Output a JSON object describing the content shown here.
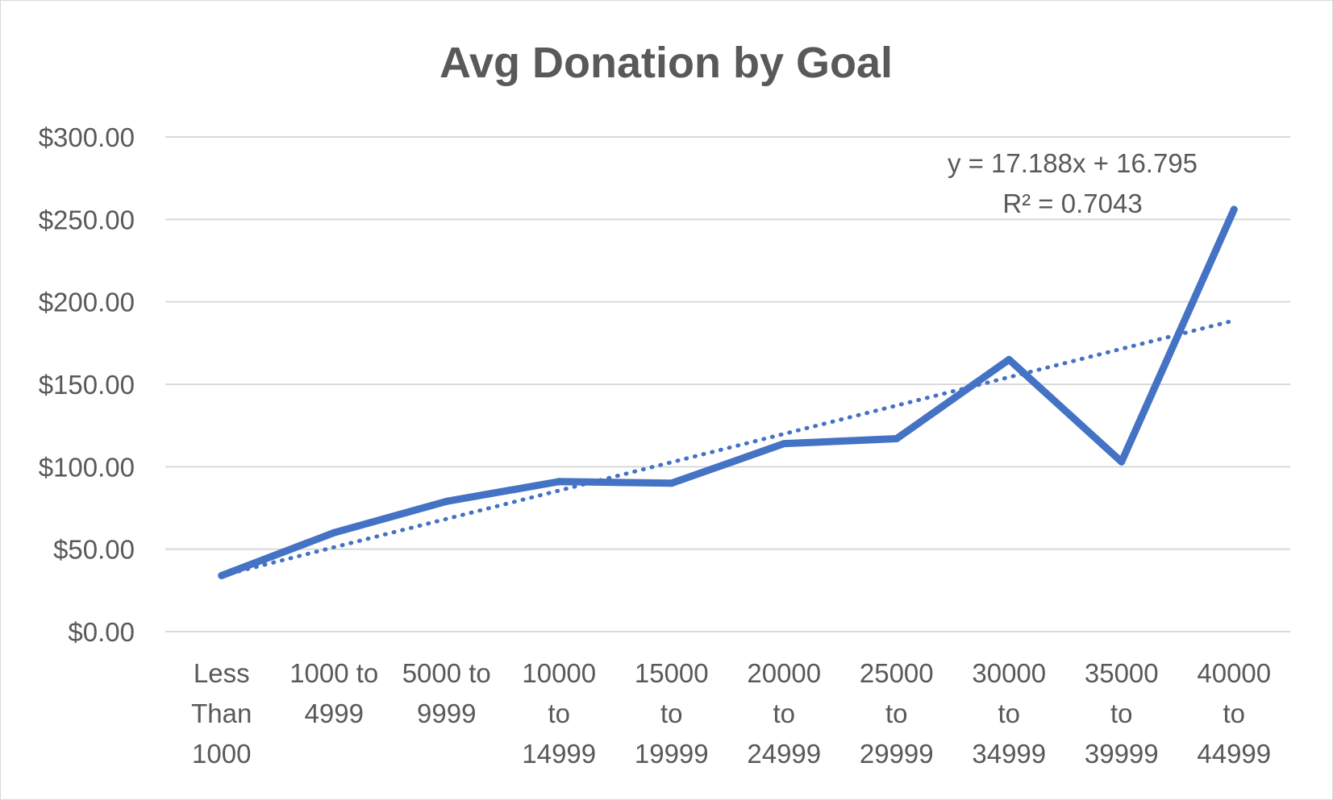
{
  "chart_data": {
    "type": "line",
    "title": "Avg Donation by Goal",
    "xlabel": "",
    "ylabel": "",
    "categories": [
      [
        "Less",
        "Than",
        "1000"
      ],
      [
        "1000 to",
        "4999"
      ],
      [
        "5000 to",
        "9999"
      ],
      [
        "10000",
        "to",
        "14999"
      ],
      [
        "15000",
        "to",
        "19999"
      ],
      [
        "20000",
        "to",
        "24999"
      ],
      [
        "25000",
        "to",
        "29999"
      ],
      [
        "30000",
        "to",
        "34999"
      ],
      [
        "35000",
        "to",
        "39999"
      ],
      [
        "40000",
        "to",
        "44999"
      ]
    ],
    "series": [
      {
        "values": [
          34,
          60,
          79,
          91,
          90,
          114,
          117,
          165,
          103,
          256
        ],
        "color": "#4472C4"
      }
    ],
    "trendline": {
      "type": "linear",
      "slope": 17.188,
      "intercept": 16.795,
      "style": "dotted",
      "color": "#4472C4",
      "equation_label": "y = 17.188x + 16.795",
      "r2_label": "R² = 0.7043"
    },
    "ylim": [
      0,
      300
    ],
    "yticks": [
      0,
      50,
      100,
      150,
      200,
      250,
      300
    ],
    "ytick_labels": [
      "$0.00",
      "$50.00",
      "$100.00",
      "$150.00",
      "$200.00",
      "$250.00",
      "$300.00"
    ],
    "grid": true,
    "legend": "none"
  }
}
